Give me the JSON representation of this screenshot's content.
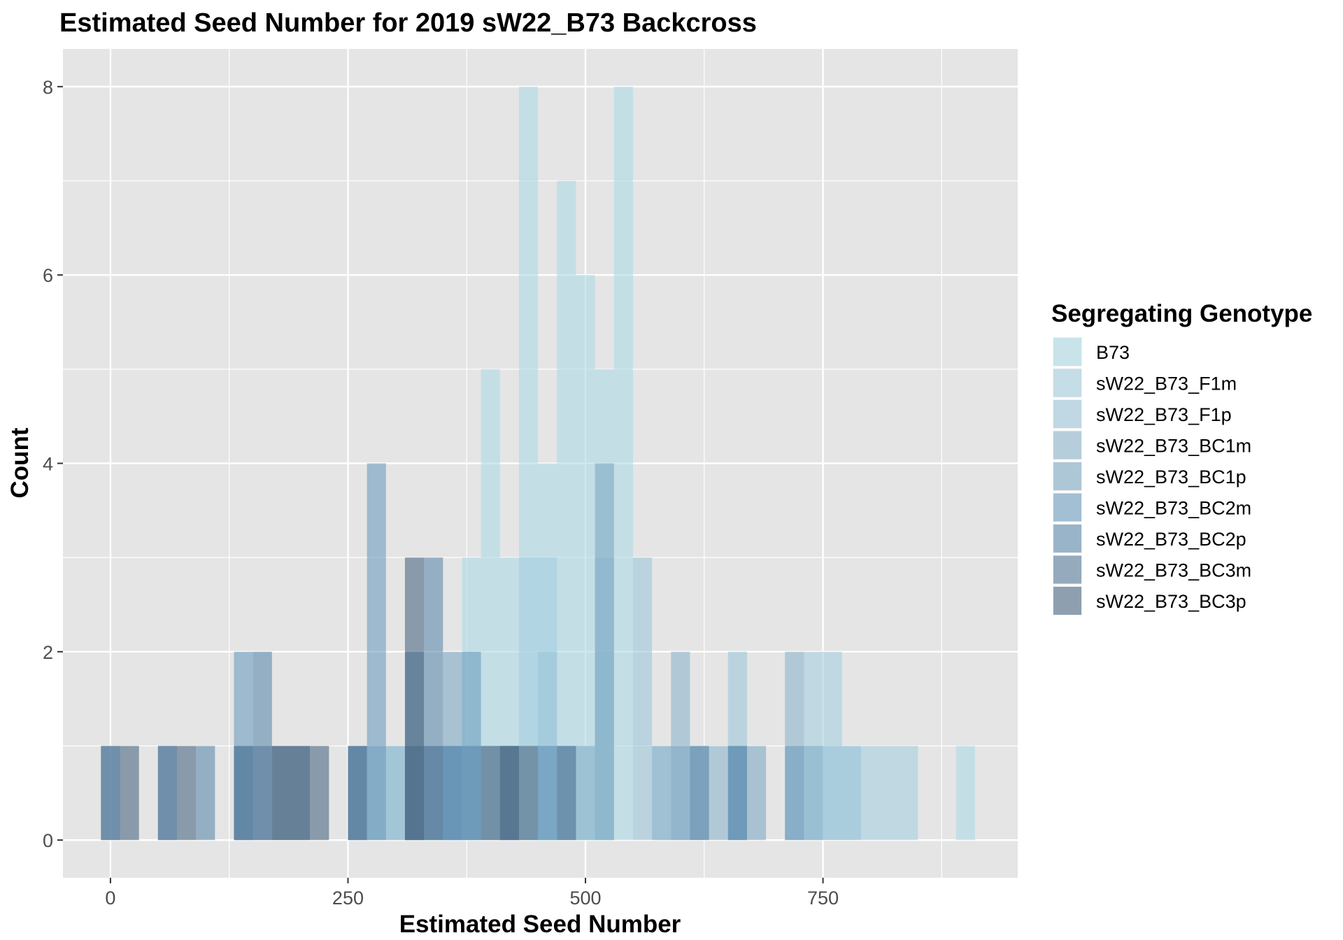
{
  "chart_data": {
    "type": "bar",
    "title": "Estimated Seed Number for 2019 sW22_B73 Backcross",
    "xlabel": "Estimated Seed Number",
    "ylabel": "Count",
    "xlim": [
      -50,
      955
    ],
    "ylim": [
      -0.4,
      8.4
    ],
    "xticks": [
      0,
      250,
      500,
      750
    ],
    "yticks": [
      0,
      2,
      4,
      6,
      8
    ],
    "xtick_labels": [
      "0",
      "250",
      "500",
      "750"
    ],
    "ytick_labels": [
      "0",
      "2",
      "4",
      "6",
      "8"
    ],
    "binwidth": 20,
    "grid": true,
    "legend": {
      "title": "Segregating Genotype",
      "placement": "right"
    },
    "series": [
      {
        "name": "B73",
        "color": "#add8e6",
        "bars": [
          [
            300,
            1
          ],
          [
            380,
            3
          ],
          [
            400,
            5
          ],
          [
            420,
            3
          ],
          [
            440,
            8
          ],
          [
            460,
            4
          ],
          [
            480,
            7
          ],
          [
            500,
            6
          ],
          [
            520,
            5
          ],
          [
            540,
            8
          ],
          [
            900,
            1
          ]
        ]
      },
      {
        "name": "sW22_B73_F1m",
        "color": "#a5cfe0",
        "bars": [
          [
            380,
            1
          ],
          [
            440,
            3
          ],
          [
            460,
            3
          ],
          [
            500,
            1
          ],
          [
            520,
            2
          ],
          [
            740,
            2
          ],
          [
            760,
            2
          ],
          [
            780,
            1
          ],
          [
            800,
            1
          ],
          [
            820,
            1
          ],
          [
            840,
            1
          ]
        ]
      },
      {
        "name": "sW22_B73_F1p",
        "color": "#9cc6da",
        "bars": [
          [
            400,
            1
          ],
          [
            460,
            2
          ],
          [
            520,
            3
          ],
          [
            560,
            3
          ],
          [
            580,
            1
          ],
          [
            660,
            2
          ],
          [
            740,
            1
          ],
          [
            760,
            1
          ],
          [
            780,
            1
          ]
        ]
      },
      {
        "name": "sW22_B73_BC1m",
        "color": "#8db6cc",
        "bars": [
          [
            300,
            1
          ],
          [
            360,
            1
          ],
          [
            500,
            1
          ],
          [
            580,
            1
          ],
          [
            600,
            2
          ],
          [
            640,
            1
          ],
          [
            720,
            2
          ],
          [
            740,
            1
          ]
        ]
      },
      {
        "name": "sW22_B73_BC1p",
        "color": "#7eaac4",
        "bars": [
          [
            280,
            1
          ],
          [
            340,
            1
          ],
          [
            360,
            2
          ],
          [
            460,
            1
          ],
          [
            520,
            4
          ],
          [
            600,
            1
          ],
          [
            620,
            1
          ],
          [
            680,
            1
          ]
        ]
      },
      {
        "name": "sW22_B73_BC2m",
        "color": "#6c9dbe",
        "bars": [
          [
            140,
            2
          ],
          [
            260,
            1
          ],
          [
            280,
            4
          ],
          [
            320,
            1
          ],
          [
            360,
            1
          ],
          [
            380,
            2
          ],
          [
            460,
            1
          ],
          [
            480,
            1
          ],
          [
            660,
            1
          ],
          [
            720,
            1
          ]
        ]
      },
      {
        "name": "sW22_B73_BC2p",
        "color": "#5d8aad",
        "bars": [
          [
            0,
            1
          ],
          [
            60,
            1
          ],
          [
            100,
            1
          ],
          [
            140,
            1
          ],
          [
            160,
            2
          ],
          [
            260,
            1
          ],
          [
            320,
            2
          ],
          [
            340,
            3
          ],
          [
            360,
            1
          ],
          [
            380,
            1
          ],
          [
            420,
            1
          ],
          [
            620,
            1
          ],
          [
            660,
            1
          ]
        ]
      },
      {
        "name": "sW22_B73_BC3m",
        "color": "#567a99",
        "bars": [
          [
            0,
            1
          ],
          [
            60,
            1
          ],
          [
            140,
            1
          ],
          [
            160,
            1
          ],
          [
            180,
            1
          ],
          [
            200,
            1
          ],
          [
            260,
            1
          ],
          [
            320,
            1
          ],
          [
            340,
            1
          ],
          [
            420,
            1
          ],
          [
            480,
            1
          ]
        ]
      },
      {
        "name": "sW22_B73_BC3p",
        "color": "#4b6782",
        "bars": [
          [
            20,
            1
          ],
          [
            80,
            1
          ],
          [
            180,
            1
          ],
          [
            200,
            1
          ],
          [
            220,
            1
          ],
          [
            320,
            3
          ],
          [
            400,
            1
          ],
          [
            420,
            1
          ],
          [
            440,
            1
          ]
        ]
      }
    ]
  }
}
